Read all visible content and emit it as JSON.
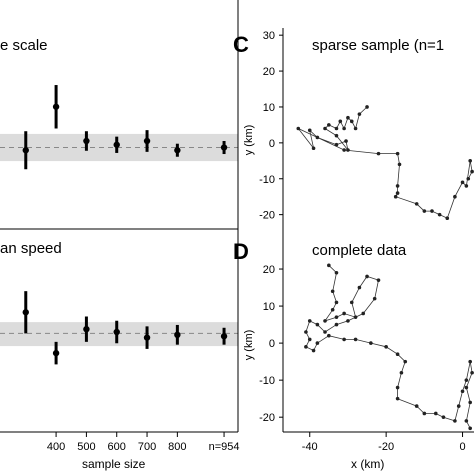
{
  "chart_data": [
    {
      "type": "scatter",
      "title": "e scale",
      "x": [
        300,
        400,
        500,
        600,
        700,
        800,
        954
      ],
      "y": [
        -0.05,
        0.75,
        0.12,
        0.05,
        0.12,
        -0.05,
        0.0
      ],
      "err": [
        0.35,
        0.4,
        0.18,
        0.15,
        0.2,
        0.12,
        0.12
      ],
      "reference_line": 0,
      "band": [
        -0.25,
        0.25
      ],
      "xlim": [
        215,
        1000
      ],
      "ylim": [
        -1.5,
        2.2
      ]
    },
    {
      "type": "scatter",
      "title": "an speed",
      "xlabel": "sample size",
      "x": [
        300,
        400,
        500,
        600,
        700,
        800,
        954
      ],
      "x_tick_labels": [
        "",
        "400",
        "500",
        "600",
        "700",
        "800",
        "n=954"
      ],
      "y": [
        0.75,
        -0.7,
        0.15,
        0.05,
        -0.15,
        -0.05,
        -0.1
      ],
      "err": [
        0.75,
        0.4,
        0.45,
        0.4,
        0.4,
        0.35,
        0.3
      ],
      "reference_line": 0,
      "band": [
        -0.45,
        0.4
      ],
      "xlim": [
        215,
        1000
      ],
      "ylim": [
        -3.5,
        3.6
      ]
    },
    {
      "type": "line",
      "panel_letter": "C",
      "title": "sparse sample (n=1",
      "ylabel": "y (km)",
      "yticks": [
        30,
        20,
        10,
        0,
        -10,
        -20
      ],
      "xlim": [
        -47,
        3
      ],
      "ylim": [
        -24,
        32
      ],
      "points": [
        [
          -25,
          10
        ],
        [
          -27,
          8
        ],
        [
          -28,
          4
        ],
        [
          -29,
          6
        ],
        [
          -30,
          7
        ],
        [
          -31,
          4
        ],
        [
          -32,
          6
        ],
        [
          -33,
          4
        ],
        [
          -35,
          5
        ],
        [
          -36,
          4
        ],
        [
          -33,
          2
        ],
        [
          -30,
          -2
        ],
        [
          -30.5,
          0.5
        ],
        [
          -33,
          -0.5
        ],
        [
          -38,
          1.5
        ],
        [
          -40,
          3.5
        ],
        [
          -39,
          -1.5
        ],
        [
          -43,
          4
        ],
        [
          -31,
          -2
        ],
        [
          -22,
          -3
        ],
        [
          -17,
          -3
        ],
        [
          -16.5,
          -6
        ],
        [
          -17,
          -12
        ],
        [
          -17,
          -14
        ],
        [
          -17.5,
          -15
        ],
        [
          -12,
          -17
        ],
        [
          -10,
          -19
        ],
        [
          -8,
          -19
        ],
        [
          -6,
          -20
        ],
        [
          -4,
          -21
        ],
        [
          -2,
          -15
        ],
        [
          0,
          -11
        ],
        [
          1,
          -12
        ],
        [
          2,
          -5
        ],
        [
          2.5,
          -8
        ],
        [
          1.5,
          -10
        ]
      ]
    },
    {
      "type": "line",
      "panel_letter": "D",
      "title": "complete data",
      "xlabel": "x (km)",
      "ylabel": "y (km)",
      "yticks": [
        20,
        10,
        0,
        -10,
        -20
      ],
      "xticks": [
        -40,
        -20,
        0
      ],
      "x_tick_labels": [
        "-40",
        "-20",
        "0"
      ],
      "xlim": [
        -47,
        3
      ],
      "ylim": [
        -24,
        30
      ],
      "points": [
        [
          -35,
          21
        ],
        [
          -33,
          19
        ],
        [
          -34,
          14
        ],
        [
          -33,
          11
        ],
        [
          -34,
          9
        ],
        [
          -36,
          6
        ],
        [
          -33,
          7
        ],
        [
          -31,
          8
        ],
        [
          -28,
          7
        ],
        [
          -29,
          11
        ],
        [
          -27,
          15
        ],
        [
          -25,
          18
        ],
        [
          -22,
          17
        ],
        [
          -23,
          12
        ],
        [
          -26,
          8
        ],
        [
          -30,
          6
        ],
        [
          -33,
          5
        ],
        [
          -36,
          3
        ],
        [
          -38,
          5
        ],
        [
          -40,
          6
        ],
        [
          -41,
          3
        ],
        [
          -40,
          1
        ],
        [
          -41,
          -1
        ],
        [
          -39,
          -2
        ],
        [
          -38,
          0
        ],
        [
          -35,
          2
        ],
        [
          -31,
          1
        ],
        [
          -28,
          1
        ],
        [
          -24,
          0
        ],
        [
          -20,
          -1
        ],
        [
          -17,
          -3
        ],
        [
          -15,
          -5
        ],
        [
          -16,
          -8
        ],
        [
          -17,
          -12
        ],
        [
          -17,
          -15
        ],
        [
          -12,
          -17
        ],
        [
          -10,
          -19
        ],
        [
          -7,
          -19
        ],
        [
          -5,
          -20
        ],
        [
          -2,
          -21
        ],
        [
          -1,
          -17
        ],
        [
          0,
          -13
        ],
        [
          1,
          -10
        ],
        [
          2,
          -5
        ],
        [
          2.5,
          -8
        ],
        [
          1,
          -12
        ],
        [
          2,
          -16
        ],
        [
          1,
          -21
        ],
        [
          2,
          -23
        ]
      ]
    }
  ],
  "panel_letters": {
    "c": "C",
    "d": "D"
  }
}
